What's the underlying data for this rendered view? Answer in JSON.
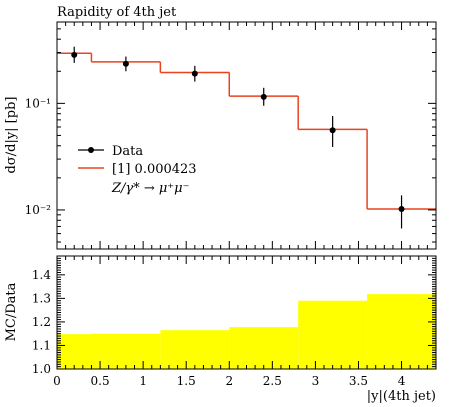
{
  "title": "Rapidity of 4th jet",
  "chart_data": [
    {
      "type": "step",
      "ylabel": "dσ/d|y| [pb]",
      "yscale": "log",
      "ylim": [
        0.0043,
        0.58
      ],
      "xlim": [
        0,
        4.4
      ],
      "ytick_labels": [
        "10⁻¹",
        "10⁻²"
      ],
      "ytick_values": [
        0.1,
        0.01
      ],
      "bin_edges": [
        0,
        0.4,
        1.2,
        2.0,
        2.8,
        3.6,
        4.4
      ],
      "series": [
        {
          "name": "Data",
          "points": [
            {
              "x": 0.2,
              "y": 0.285,
              "err_lo": 0.045,
              "err_hi": 0.055
            },
            {
              "x": 0.8,
              "y": 0.235,
              "err_lo": 0.035,
              "err_hi": 0.04
            },
            {
              "x": 1.6,
              "y": 0.19,
              "err_lo": 0.03,
              "err_hi": 0.035
            },
            {
              "x": 2.4,
              "y": 0.115,
              "err_lo": 0.02,
              "err_hi": 0.025
            },
            {
              "x": 3.2,
              "y": 0.056,
              "err_lo": 0.017,
              "err_hi": 0.02
            },
            {
              "x": 4.0,
              "y": 0.0102,
              "err_lo": 0.0035,
              "err_hi": 0.0035
            }
          ]
        },
        {
          "name": "[1] 0.000423",
          "color": "#e8431f",
          "values": [
            0.295,
            0.245,
            0.195,
            0.117,
            0.057,
            0.0102
          ]
        }
      ],
      "legend": {
        "position": "middle-left",
        "entries": [
          "Data",
          "[1] 0.000423"
        ],
        "note": "Z/γ* → μ⁺μ⁻"
      }
    },
    {
      "type": "ratio-band",
      "ylabel": "MC/Data",
      "xlabel": "|y|(4th jet)",
      "ylim": [
        1.0,
        1.48
      ],
      "xlim": [
        0,
        4.4
      ],
      "ytick_labels": [
        "1.0",
        "1.1",
        "1.2",
        "1.3",
        "1.4"
      ],
      "ytick_values": [
        1.0,
        1.1,
        1.2,
        1.3,
        1.4
      ],
      "xtick_labels": [
        "0",
        "0.5",
        "1",
        "1.5",
        "2",
        "2.5",
        "3",
        "3.5",
        "4"
      ],
      "xtick_values": [
        0,
        0.5,
        1,
        1.5,
        2,
        2.5,
        3,
        3.5,
        4
      ],
      "bin_edges": [
        0,
        0.4,
        1.2,
        2.0,
        2.8,
        3.6,
        4.4
      ],
      "band_upper": [
        1.148,
        1.15,
        1.165,
        1.178,
        1.29,
        1.318
      ],
      "band_color": "#ffff00"
    }
  ]
}
